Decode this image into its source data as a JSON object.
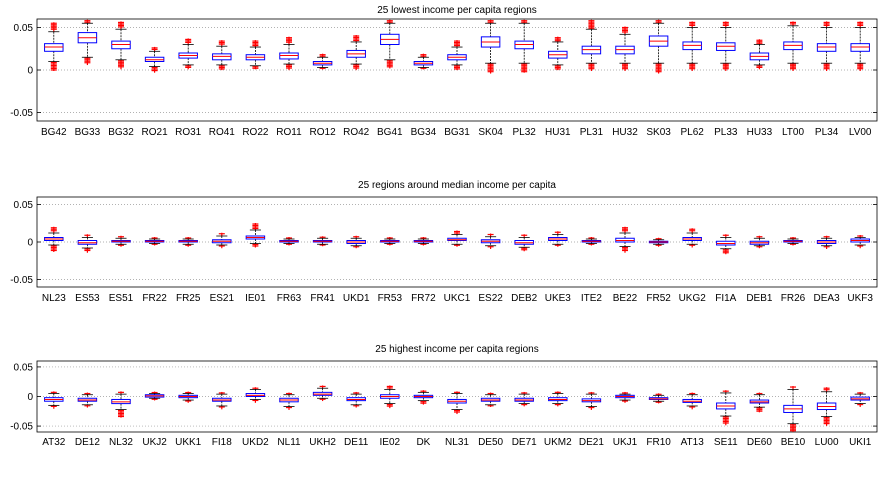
{
  "chart_data": [
    {
      "type": "box",
      "title": "25 lowest income per capita regions",
      "ylim": [
        -0.06,
        0.06
      ],
      "yticks": [
        0.05,
        0,
        -0.05
      ],
      "ytick_labels": [
        "0.05",
        "0",
        "-0.05"
      ],
      "categories": [
        "BG42",
        "BG33",
        "BG32",
        "RO21",
        "RO31",
        "RO41",
        "RO22",
        "RO11",
        "RO12",
        "RO42",
        "BG41",
        "BG34",
        "BG31",
        "SK04",
        "PL32",
        "HU31",
        "PL31",
        "HU32",
        "SK03",
        "PL62",
        "PL33",
        "HU33",
        "LT00",
        "PL34",
        "LV00"
      ],
      "median": [
        0.027,
        0.038,
        0.03,
        0.012,
        0.017,
        0.016,
        0.015,
        0.017,
        0.008,
        0.019,
        0.036,
        0.008,
        0.015,
        0.033,
        0.03,
        0.018,
        0.024,
        0.024,
        0.034,
        0.029,
        0.028,
        0.016,
        0.029,
        0.027,
        0.027
      ],
      "q1": [
        0.022,
        0.032,
        0.025,
        0.01,
        0.014,
        0.012,
        0.012,
        0.013,
        0.006,
        0.015,
        0.03,
        0.006,
        0.012,
        0.027,
        0.025,
        0.014,
        0.019,
        0.019,
        0.028,
        0.024,
        0.023,
        0.012,
        0.024,
        0.022,
        0.022
      ],
      "q3": [
        0.031,
        0.044,
        0.034,
        0.015,
        0.02,
        0.019,
        0.018,
        0.02,
        0.01,
        0.023,
        0.042,
        0.01,
        0.018,
        0.039,
        0.034,
        0.022,
        0.028,
        0.028,
        0.04,
        0.033,
        0.032,
        0.02,
        0.033,
        0.031,
        0.031
      ],
      "whisker_low": [
        0.01,
        0.015,
        0.012,
        0.004,
        0.006,
        0.006,
        0.005,
        0.007,
        0.003,
        0.007,
        0.012,
        0.003,
        0.006,
        0.008,
        0.008,
        0.006,
        0.008,
        0.008,
        0.008,
        0.008,
        0.008,
        0.006,
        0.008,
        0.008,
        0.008
      ],
      "whisker_high": [
        0.045,
        0.055,
        0.048,
        0.022,
        0.03,
        0.028,
        0.027,
        0.03,
        0.015,
        0.033,
        0.055,
        0.015,
        0.027,
        0.055,
        0.055,
        0.033,
        0.048,
        0.042,
        0.055,
        0.05,
        0.05,
        0.03,
        0.052,
        0.05,
        0.05
      ],
      "outlier_low": [
        0.0,
        0.007,
        0.002,
        -0.002,
        0.002,
        0.001,
        0.002,
        0.001,
        0.002,
        0.001,
        0.003,
        0.002,
        0.001,
        -0.003,
        -0.002,
        0.001,
        0.0,
        0.0,
        -0.003,
        0.0,
        0.0,
        0.002,
        0.0,
        0.0,
        0.0
      ],
      "outlier_high": [
        0.055,
        0.058,
        0.056,
        0.026,
        0.036,
        0.034,
        0.034,
        0.038,
        0.018,
        0.04,
        0.058,
        0.018,
        0.034,
        0.058,
        0.058,
        0.038,
        0.058,
        0.05,
        0.058,
        0.056,
        0.056,
        0.035,
        0.056,
        0.056,
        0.056
      ]
    },
    {
      "type": "box",
      "title": "25 regions around median income per capita",
      "ylim": [
        -0.06,
        0.06
      ],
      "yticks": [
        0.05,
        0,
        -0.05
      ],
      "ytick_labels": [
        "0.05",
        "0",
        "-0.05"
      ],
      "categories": [
        "NL23",
        "ES53",
        "ES51",
        "FR22",
        "FR25",
        "ES21",
        "IE01",
        "FR63",
        "FR41",
        "UKD1",
        "FR53",
        "FR72",
        "UKC1",
        "ES22",
        "DEB2",
        "UKE3",
        "ITE2",
        "BE22",
        "FR52",
        "UKG2",
        "FI1A",
        "DEB1",
        "FR26",
        "DEA3",
        "UKF3"
      ],
      "median": [
        0.004,
        -0.001,
        0.001,
        0.001,
        0.001,
        0.001,
        0.006,
        0.001,
        0.001,
        0.0,
        0.001,
        0.001,
        0.003,
        0.001,
        -0.001,
        0.004,
        0.001,
        0.002,
        0.0,
        0.004,
        -0.002,
        -0.001,
        0.001,
        0.0,
        0.002
      ],
      "q1": [
        0.002,
        -0.003,
        0.0,
        0.0,
        0.0,
        -0.001,
        0.004,
        0.0,
        0.0,
        -0.002,
        0.0,
        0.0,
        0.002,
        -0.001,
        -0.003,
        0.002,
        0.0,
        0.0,
        -0.001,
        0.002,
        -0.004,
        -0.003,
        0.0,
        -0.002,
        0.0
      ],
      "q3": [
        0.006,
        0.002,
        0.002,
        0.002,
        0.002,
        0.003,
        0.008,
        0.002,
        0.002,
        0.002,
        0.002,
        0.002,
        0.005,
        0.003,
        0.002,
        0.006,
        0.002,
        0.005,
        0.001,
        0.006,
        0.001,
        0.001,
        0.002,
        0.002,
        0.004
      ],
      "whisker_low": [
        -0.004,
        -0.008,
        -0.003,
        -0.002,
        -0.003,
        -0.004,
        -0.002,
        -0.002,
        -0.003,
        -0.005,
        -0.002,
        -0.002,
        -0.003,
        -0.005,
        -0.007,
        -0.003,
        -0.002,
        -0.006,
        -0.003,
        -0.003,
        -0.009,
        -0.005,
        -0.002,
        -0.005,
        -0.004
      ],
      "whisker_high": [
        0.012,
        0.006,
        0.005,
        0.004,
        0.004,
        0.008,
        0.016,
        0.004,
        0.005,
        0.005,
        0.004,
        0.004,
        0.01,
        0.007,
        0.006,
        0.01,
        0.004,
        0.012,
        0.003,
        0.012,
        0.006,
        0.005,
        0.004,
        0.005,
        0.006
      ],
      "outlier_low": [
        -0.012,
        -0.013,
        -0.005,
        -0.003,
        -0.005,
        -0.007,
        -0.006,
        -0.003,
        -0.004,
        -0.007,
        -0.003,
        -0.003,
        -0.005,
        -0.008,
        -0.011,
        -0.005,
        -0.003,
        -0.013,
        -0.005,
        -0.006,
        -0.015,
        -0.007,
        -0.003,
        -0.008,
        -0.007
      ],
      "outlier_high": [
        0.019,
        0.009,
        0.007,
        0.005,
        0.005,
        0.011,
        0.024,
        0.005,
        0.006,
        0.007,
        0.005,
        0.005,
        0.014,
        0.01,
        0.009,
        0.013,
        0.005,
        0.019,
        0.004,
        0.017,
        0.009,
        0.007,
        0.005,
        0.007,
        0.008
      ]
    },
    {
      "type": "box",
      "title": "25 highest income per capita regions",
      "ylim": [
        -0.06,
        0.06
      ],
      "yticks": [
        0.05,
        0,
        -0.05
      ],
      "ytick_labels": [
        "0.05",
        "0",
        "-0.05"
      ],
      "categories": [
        "AT32",
        "DE12",
        "NL32",
        "UKJ2",
        "UKK1",
        "FI18",
        "UKD2",
        "NL11",
        "UKH2",
        "DE11",
        "IE02",
        "DK",
        "NL31",
        "DE50",
        "DE71",
        "UKM2",
        "DE21",
        "UKJ1",
        "FR10",
        "AT13",
        "SE11",
        "DE60",
        "BE10",
        "LU00",
        "UKI1"
      ],
      "median": [
        -0.005,
        -0.006,
        -0.009,
        0.001,
        0.0,
        -0.006,
        0.002,
        -0.006,
        0.004,
        -0.005,
        0.0,
        0.0,
        -0.008,
        -0.006,
        -0.006,
        -0.005,
        -0.007,
        0.0,
        -0.004,
        -0.008,
        -0.016,
        -0.009,
        -0.021,
        -0.017,
        -0.004
      ],
      "q1": [
        -0.008,
        -0.008,
        -0.012,
        -0.001,
        -0.002,
        -0.008,
        0.0,
        -0.009,
        0.002,
        -0.007,
        -0.003,
        -0.002,
        -0.011,
        -0.008,
        -0.008,
        -0.007,
        -0.009,
        -0.002,
        -0.005,
        -0.01,
        -0.021,
        -0.011,
        -0.027,
        -0.022,
        -0.006
      ],
      "q3": [
        -0.002,
        -0.003,
        -0.005,
        0.003,
        0.002,
        -0.003,
        0.005,
        -0.003,
        0.007,
        -0.002,
        0.003,
        0.002,
        -0.005,
        -0.003,
        -0.003,
        -0.002,
        -0.004,
        0.002,
        -0.002,
        -0.005,
        -0.011,
        -0.006,
        -0.015,
        -0.011,
        -0.001
      ],
      "whisker_low": [
        -0.015,
        -0.014,
        -0.022,
        -0.003,
        -0.006,
        -0.016,
        -0.005,
        -0.017,
        -0.003,
        -0.014,
        -0.012,
        -0.007,
        -0.022,
        -0.014,
        -0.012,
        -0.012,
        -0.017,
        -0.006,
        -0.008,
        -0.016,
        -0.033,
        -0.018,
        -0.046,
        -0.034,
        -0.012
      ],
      "whisker_high": [
        0.005,
        0.003,
        0.004,
        0.005,
        0.005,
        0.004,
        0.012,
        0.003,
        0.014,
        0.004,
        0.012,
        0.007,
        0.005,
        0.003,
        0.004,
        0.005,
        0.004,
        0.004,
        0.002,
        0.003,
        0.006,
        0.003,
        0.012,
        0.008,
        0.004
      ],
      "outlier_low": [
        -0.019,
        -0.017,
        -0.034,
        -0.005,
        -0.009,
        -0.02,
        -0.009,
        -0.021,
        -0.006,
        -0.017,
        -0.018,
        -0.012,
        -0.028,
        -0.016,
        -0.015,
        -0.015,
        -0.021,
        -0.009,
        -0.01,
        -0.02,
        -0.047,
        -0.025,
        -0.058,
        -0.048,
        -0.016
      ],
      "outlier_high": [
        0.007,
        0.005,
        0.007,
        0.006,
        0.006,
        0.006,
        0.014,
        0.005,
        0.017,
        0.006,
        0.017,
        0.009,
        0.007,
        0.005,
        0.006,
        0.007,
        0.006,
        0.006,
        0.003,
        0.005,
        0.009,
        0.005,
        0.016,
        0.014,
        0.006
      ]
    }
  ],
  "colors": {
    "box": "#0000ff",
    "median": "#ff0000",
    "whisker": "#000000",
    "outlier": "#ff0000"
  }
}
